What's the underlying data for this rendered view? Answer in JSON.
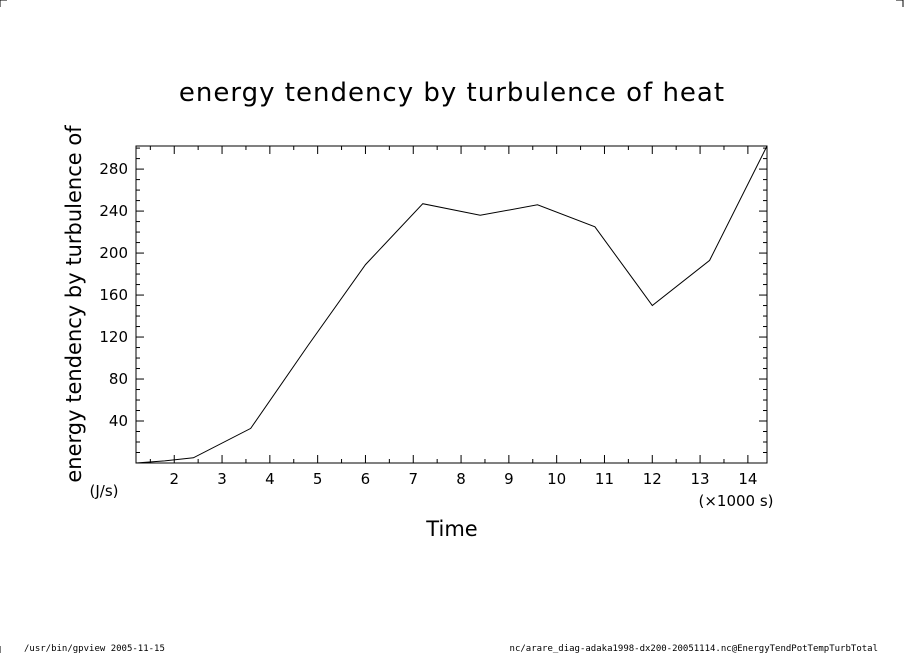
{
  "chart_data": {
    "type": "line",
    "title": "energy tendency by turbulence of heat",
    "xlabel": "Time",
    "x_unit": "(×1000 s)",
    "ylabel": "energy tendency by turbulence of",
    "y_unit": "(J/s)",
    "xlim": [
      1.2,
      14.4
    ],
    "ylim": [
      0,
      302
    ],
    "x_ticks": [
      2,
      3,
      4,
      5,
      6,
      7,
      8,
      9,
      10,
      11,
      12,
      13,
      14
    ],
    "y_ticks": [
      40,
      80,
      120,
      160,
      200,
      240,
      280
    ],
    "grid": false,
    "series": [
      {
        "x": [
          1.2,
          1.8,
          2.4,
          3.6,
          4.8,
          6.0,
          7.2,
          8.4,
          9.6,
          10.8,
          12.0,
          13.2,
          14.4
        ],
        "y": [
          0,
          2,
          5,
          33,
          112,
          189,
          247,
          236,
          246,
          225,
          150,
          193,
          302
        ]
      }
    ]
  },
  "footer": {
    "left": "/usr/bin/gpview   2005-11-15",
    "right": "nc/arare_diag-adaka1998-dx200-20051114.nc@EnergyTendPotTempTurbTotal"
  }
}
